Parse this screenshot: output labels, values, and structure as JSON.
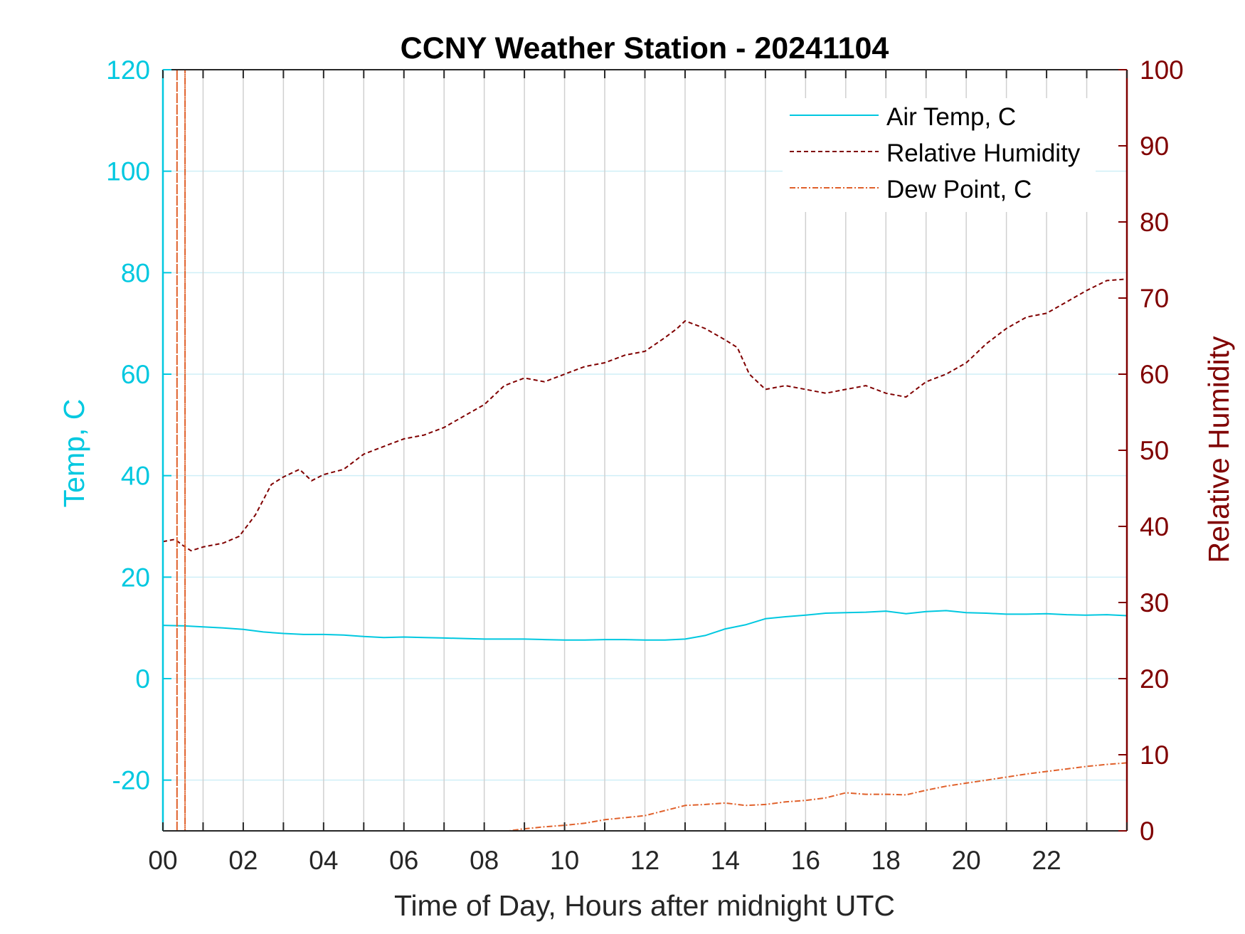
{
  "chart_data": {
    "type": "line",
    "title": "CCNY Weather Station - 20241104",
    "xlabel": "Time of Day, Hours after midnight UTC",
    "ylabel_left": "Temp, C",
    "ylabel_right": "Relative Humidity",
    "xlim": [
      0,
      24
    ],
    "ylim_left": [
      -30,
      120
    ],
    "ylim_right": [
      0,
      100
    ],
    "x_ticks": [
      0,
      2,
      4,
      6,
      8,
      10,
      12,
      14,
      16,
      18,
      20,
      22
    ],
    "x_tick_labels": [
      "00",
      "02",
      "04",
      "06",
      "08",
      "10",
      "12",
      "14",
      "16",
      "18",
      "20",
      "22"
    ],
    "y_left_ticks": [
      120,
      100,
      80,
      60,
      40,
      20,
      0,
      -20
    ],
    "y_left_tick_labels": [
      "120",
      "100",
      "80",
      "60",
      "40",
      "20",
      "0",
      "-20"
    ],
    "y_right_ticks": [
      100,
      90,
      80,
      70,
      60,
      50,
      40,
      30,
      20,
      10,
      0
    ],
    "y_right_tick_labels": [
      "100",
      "90",
      "80",
      "70",
      "60",
      "50",
      "40",
      "30",
      "20",
      "10",
      "0"
    ],
    "grid": true,
    "legend_position": "top-right",
    "colors": {
      "air_temp": "#00c8e0",
      "relative_humidity": "#800000",
      "dew_point": "#e0602a",
      "left_axis": "#00c8e0",
      "right_axis": "#800000",
      "grid_x": "#d0d0d0",
      "grid_y": "#cfeff7"
    },
    "series": [
      {
        "name": "Air Temp, C",
        "axis": "left",
        "style": "solid",
        "x": [
          0,
          0.5,
          1,
          1.5,
          2,
          2.5,
          3,
          3.5,
          4,
          4.5,
          5,
          5.5,
          6,
          6.5,
          7,
          7.5,
          8,
          8.5,
          9,
          9.5,
          10,
          10.5,
          11,
          11.5,
          12,
          12.5,
          13,
          13.5,
          14,
          14.5,
          15,
          15.5,
          16,
          16.5,
          17,
          17.5,
          18,
          18.5,
          19,
          19.5,
          20,
          20.5,
          21,
          21.5,
          22,
          22.5,
          23,
          23.5,
          24
        ],
        "y": [
          10.5,
          10.4,
          10.2,
          10.0,
          9.7,
          9.2,
          8.9,
          8.7,
          8.7,
          8.6,
          8.3,
          8.1,
          8.2,
          8.1,
          8.0,
          7.9,
          7.8,
          7.8,
          7.8,
          7.7,
          7.6,
          7.6,
          7.7,
          7.7,
          7.6,
          7.6,
          7.8,
          8.5,
          9.8,
          10.6,
          11.8,
          12.2,
          12.5,
          12.9,
          13.0,
          13.1,
          13.3,
          12.8,
          13.2,
          13.4,
          13.0,
          12.9,
          12.7,
          12.7,
          12.8,
          12.6,
          12.5,
          12.6,
          12.4
        ]
      },
      {
        "name": "Relative Humidity",
        "axis": "right",
        "style": "dashed",
        "x": [
          0,
          0.3,
          0.5,
          0.7,
          1,
          1.5,
          1.9,
          2.3,
          2.7,
          3.0,
          3.4,
          3.7,
          4.0,
          4.5,
          5.0,
          5.5,
          6.0,
          6.5,
          7.0,
          7.5,
          8.0,
          8.5,
          9.0,
          9.5,
          10.0,
          10.5,
          11.0,
          11.5,
          12.0,
          12.5,
          12.8,
          13.0,
          13.5,
          14.0,
          14.3,
          14.6,
          15.0,
          15.5,
          16.0,
          16.5,
          17.0,
          17.5,
          18.0,
          18.5,
          19.0,
          19.5,
          20.0,
          20.5,
          21.0,
          21.5,
          22.0,
          22.5,
          23.0,
          23.5,
          24.0
        ],
        "y": [
          38.0,
          38.3,
          37.5,
          36.8,
          37.3,
          37.8,
          38.7,
          41.5,
          45.5,
          46.5,
          47.5,
          46.0,
          46.8,
          47.5,
          49.5,
          50.5,
          51.5,
          52.0,
          53.0,
          54.5,
          56.0,
          58.5,
          59.5,
          59.0,
          60.0,
          61.0,
          61.5,
          62.5,
          63.0,
          64.8,
          66.0,
          67.0,
          66.0,
          64.5,
          63.5,
          60.0,
          58.0,
          58.5,
          58.0,
          57.5,
          58.0,
          58.5,
          57.5,
          57.0,
          59.0,
          60.0,
          61.5,
          64.0,
          66.0,
          67.5,
          68.0,
          69.5,
          71.0,
          72.3,
          72.5
        ]
      },
      {
        "name": "Dew Point, C",
        "axis": "left",
        "style": "dash-dot",
        "x": [
          0.35,
          0.35,
          0.35,
          0.55,
          0.55,
          0.55,
          8.6,
          9.0,
          9.5,
          10.0,
          10.5,
          11.0,
          11.5,
          12.0,
          12.5,
          13.0,
          13.5,
          14.0,
          14.5,
          15.0,
          15.5,
          16.0,
          16.5,
          17.0,
          17.5,
          18.0,
          18.5,
          19.0,
          19.5,
          20.0,
          20.5,
          21.0,
          21.5,
          22.0,
          22.5,
          23.0,
          23.5,
          24.0
        ],
        "y": [
          -30,
          120,
          -30,
          -30,
          120,
          -30,
          -30.0,
          -29.6,
          -29.2,
          -28.9,
          -28.5,
          -27.8,
          -27.4,
          -27.0,
          -26.0,
          -25.0,
          -24.8,
          -24.5,
          -25.0,
          -24.8,
          -24.3,
          -24.0,
          -23.5,
          -22.5,
          -22.8,
          -22.8,
          -22.9,
          -22.0,
          -21.2,
          -20.6,
          -20.0,
          -19.4,
          -18.8,
          -18.3,
          -17.8,
          -17.3,
          -16.9,
          -16.6
        ]
      }
    ]
  }
}
